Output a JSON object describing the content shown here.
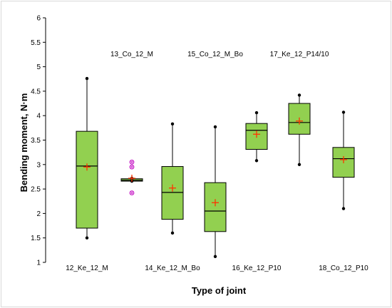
{
  "chart_data": {
    "type": "box",
    "xlabel": "Type of joint",
    "ylabel": "Bending moment, N·m",
    "ylim": [
      1,
      6
    ],
    "yticks": [
      1,
      1.5,
      2,
      2.5,
      3,
      3.5,
      4,
      4.5,
      5,
      5.5,
      6
    ],
    "grid": false,
    "colors": {
      "box_fill": "#92D050",
      "mean_marker": "#FF3300",
      "outlier": "#CC33CC",
      "line": "#000000"
    },
    "categories": [
      "12_Ke_12_M",
      "13_Co_12_M",
      "14_Ke_12_M_Bo",
      "15_Co_12_M_Bo",
      "16_Ke_12_P10",
      "17_Ke_12_P14/10",
      "18_Co_12_P10"
    ],
    "category_label_rows": [
      "bottom",
      "top",
      "bottom",
      "top",
      "bottom",
      "top",
      "bottom"
    ],
    "boxes": [
      {
        "min": 1.5,
        "q1": 1.7,
        "median": 2.97,
        "q3": 3.68,
        "max": 4.76,
        "mean": 2.95,
        "outliers": []
      },
      {
        "min": 2.66,
        "q1": 2.66,
        "median": 2.68,
        "q3": 2.71,
        "max": 2.72,
        "mean": 2.72,
        "outliers": [
          2.42,
          2.95,
          3.05
        ]
      },
      {
        "min": 1.6,
        "q1": 1.88,
        "median": 2.43,
        "q3": 2.96,
        "max": 3.83,
        "mean": 2.52,
        "outliers": []
      },
      {
        "min": 1.12,
        "q1": 1.63,
        "median": 2.05,
        "q3": 2.63,
        "max": 3.77,
        "mean": 2.22,
        "outliers": []
      },
      {
        "min": 3.08,
        "q1": 3.31,
        "median": 3.7,
        "q3": 3.84,
        "max": 4.06,
        "mean": 3.62,
        "outliers": []
      },
      {
        "min": 3.0,
        "q1": 3.62,
        "median": 3.86,
        "q3": 4.25,
        "max": 4.42,
        "mean": 3.89,
        "outliers": []
      },
      {
        "min": 2.1,
        "q1": 2.74,
        "median": 3.12,
        "q3": 3.35,
        "max": 4.07,
        "mean": 3.1,
        "outliers": []
      }
    ]
  }
}
